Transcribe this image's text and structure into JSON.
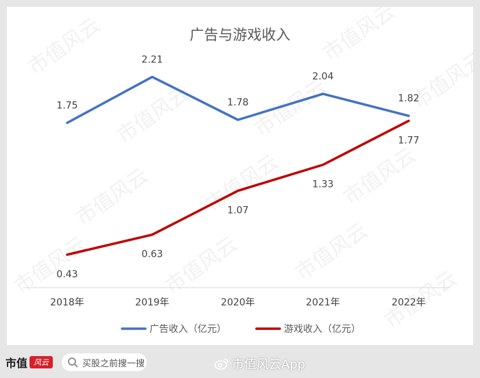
{
  "chart_data": {
    "type": "line",
    "title": "广告与游戏收入",
    "categories": [
      "2018年",
      "2019年",
      "2020年",
      "2021年",
      "2022年"
    ],
    "series": [
      {
        "name": "广告收入（亿元）",
        "values": [
          1.75,
          2.21,
          1.78,
          2.04,
          1.82
        ],
        "labels": [
          "1.75",
          "2.21",
          "1.78",
          "2.04",
          "1.82"
        ],
        "color": "#4472c4"
      },
      {
        "name": "游戏收入（亿元）",
        "values": [
          0.43,
          0.63,
          1.07,
          1.33,
          1.77
        ],
        "labels": [
          "0.43",
          "0.63",
          "1.07",
          "1.33",
          "1.77"
        ],
        "color": "#c00000"
      }
    ],
    "ylim": [
      0.1,
      2.5
    ],
    "legend": "bottom",
    "grid": false
  },
  "watermark": "市值风云",
  "footer": {
    "brand_text": "市值",
    "brand_mark": "风云",
    "search_text": "买股之前搜一搜",
    "app_label": "市值风云App"
  }
}
